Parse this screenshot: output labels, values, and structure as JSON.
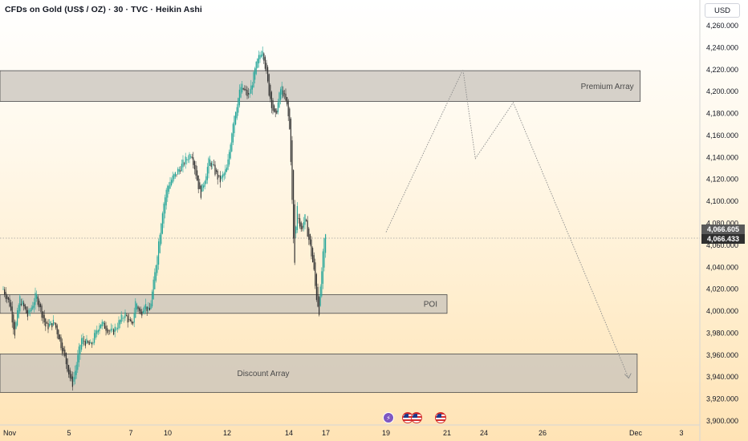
{
  "header": {
    "title": "CFDs on Gold (US$ / OZ) · 30 · TVC · Heikin Ashi",
    "currency": "USD"
  },
  "price_tags": {
    "upper": "4,066.605",
    "lower": "4,066.433"
  },
  "events": [
    {
      "icon": "lightning-icon"
    },
    {
      "icon": "us-flag-icon"
    },
    {
      "icon": "us-flag-icon"
    },
    {
      "icon": "us-flag-icon"
    }
  ],
  "colors": {
    "up": "#26a69a",
    "down": "#333333",
    "zone_fill": "#c8c3bb",
    "zone_edge": "#4a4a4a",
    "path": "#8a8a8a",
    "current_price_line": "#9e9e9e"
  },
  "chart_data": {
    "type": "candlestick",
    "style": "Heikin Ashi",
    "timeframe": "30",
    "ylim": [
      3900,
      4270
    ],
    "yticks": [
      {
        "value": 4260,
        "label": "4,260.000"
      },
      {
        "value": 4240,
        "label": "4,240.000"
      },
      {
        "value": 4220,
        "label": "4,220.000"
      },
      {
        "value": 4200,
        "label": "4,200.000"
      },
      {
        "value": 4180,
        "label": "4,180.000"
      },
      {
        "value": 4160,
        "label": "4,160.000"
      },
      {
        "value": 4140,
        "label": "4,140.000"
      },
      {
        "value": 4120,
        "label": "4,120.000"
      },
      {
        "value": 4100,
        "label": "4,100.000"
      },
      {
        "value": 4080,
        "label": "4,080.000"
      },
      {
        "value": 4060,
        "label": "4,060.000"
      },
      {
        "value": 4040,
        "label": "4,040.000"
      },
      {
        "value": 4020,
        "label": "4,020.000"
      },
      {
        "value": 4000,
        "label": "4,000.000"
      },
      {
        "value": 3980,
        "label": "3,980.000"
      },
      {
        "value": 3960,
        "label": "3,960.000"
      },
      {
        "value": 3940,
        "label": "3,940.000"
      },
      {
        "value": 3920,
        "label": "3,920.000"
      },
      {
        "value": 3900,
        "label": "3,900.000"
      }
    ],
    "xticks": [
      {
        "day": 3,
        "label": "Nov"
      },
      {
        "day": 5,
        "label": "5"
      },
      {
        "day": 7,
        "label": "7"
      },
      {
        "day": 10,
        "label": "10"
      },
      {
        "day": 12,
        "label": "12"
      },
      {
        "day": 14,
        "label": "14"
      },
      {
        "day": 17,
        "label": "17"
      },
      {
        "day": 19,
        "label": "19"
      },
      {
        "day": 21,
        "label": "21"
      },
      {
        "day": 24,
        "label": "24"
      },
      {
        "day": 26,
        "label": "26"
      },
      {
        "day": 30,
        "label": "Dec"
      },
      {
        "day": 33,
        "label": "3"
      }
    ],
    "zones": [
      {
        "label": "Premium Array",
        "low": 4191,
        "high": 4219,
        "from_day": 3,
        "to_day": 30.3
      },
      {
        "label": "POI",
        "low": 3998,
        "high": 4015,
        "from_day": 3,
        "to_day": 21
      },
      {
        "label": "Discount Array",
        "low": 3926,
        "high": 3961,
        "from_day": 3,
        "to_day": 30.1
      }
    ],
    "current_price": 4066.5,
    "projection_path": [
      {
        "day": 19.0,
        "price": 4072
      },
      {
        "day": 22.3,
        "price": 4220
      },
      {
        "day": 23.3,
        "price": 4139
      },
      {
        "day": 25.0,
        "price": 4190
      },
      {
        "day": 29.7,
        "price": 3939
      }
    ],
    "price_path": [
      {
        "day": 3.0,
        "price": 4020
      },
      {
        "day": 3.2,
        "price": 4006
      },
      {
        "day": 3.35,
        "price": 3980
      },
      {
        "day": 3.5,
        "price": 4012
      },
      {
        "day": 3.75,
        "price": 3995
      },
      {
        "day": 4.0,
        "price": 4015
      },
      {
        "day": 4.3,
        "price": 3985
      },
      {
        "day": 4.55,
        "price": 3990
      },
      {
        "day": 4.85,
        "price": 3960
      },
      {
        "day": 5.1,
        "price": 3932
      },
      {
        "day": 5.4,
        "price": 3975
      },
      {
        "day": 5.7,
        "price": 3968
      },
      {
        "day": 6.0,
        "price": 3990
      },
      {
        "day": 6.4,
        "price": 3980
      },
      {
        "day": 6.8,
        "price": 3998
      },
      {
        "day": 7.1,
        "price": 3985
      },
      {
        "day": 7.4,
        "price": 4010
      },
      {
        "day": 7.8,
        "price": 3996
      },
      {
        "day": 8.1,
        "price": 4008
      },
      {
        "day": 8.5,
        "price": 3998
      },
      {
        "day": 8.9,
        "price": 4030
      },
      {
        "day": 9.2,
        "price": 4058
      },
      {
        "day": 9.6,
        "price": 4095
      },
      {
        "day": 10.0,
        "price": 4115
      },
      {
        "day": 10.4,
        "price": 4130
      },
      {
        "day": 10.8,
        "price": 4145
      },
      {
        "day": 11.1,
        "price": 4105
      },
      {
        "day": 11.4,
        "price": 4138
      },
      {
        "day": 11.75,
        "price": 4118
      },
      {
        "day": 12.0,
        "price": 4130
      },
      {
        "day": 12.2,
        "price": 4175
      },
      {
        "day": 12.45,
        "price": 4205
      },
      {
        "day": 12.7,
        "price": 4195
      },
      {
        "day": 12.95,
        "price": 4225
      },
      {
        "day": 13.15,
        "price": 4240
      },
      {
        "day": 13.35,
        "price": 4200
      },
      {
        "day": 13.55,
        "price": 4175
      },
      {
        "day": 13.75,
        "price": 4205
      },
      {
        "day": 13.95,
        "price": 4185
      },
      {
        "day": 14.1,
        "price": 4160
      },
      {
        "day": 14.3,
        "price": 4085
      },
      {
        "day": 14.45,
        "price": 4038
      },
      {
        "day": 14.65,
        "price": 4100
      },
      {
        "day": 14.95,
        "price": 4072
      },
      {
        "day": 15.3,
        "price": 4085
      },
      {
        "day": 15.7,
        "price": 4060
      },
      {
        "day": 16.0,
        "price": 4040
      },
      {
        "day": 16.2,
        "price": 4015
      },
      {
        "day": 16.45,
        "price": 4000
      },
      {
        "day": 16.65,
        "price": 4035
      },
      {
        "day": 16.85,
        "price": 4062
      },
      {
        "day": 17.0,
        "price": 4070
      }
    ]
  }
}
